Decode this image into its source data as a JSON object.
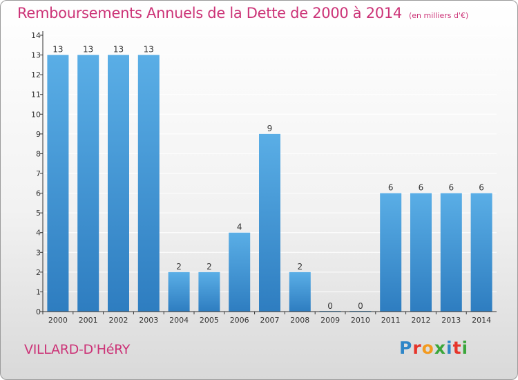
{
  "title": "Remboursements Annuels de la Dette de 2000 à 2014",
  "subtitle": "(en milliers d'€)",
  "commune": "VILLARD-D'HéRY",
  "logo": [
    "P",
    "r",
    "o",
    "x",
    "i",
    "t",
    "i"
  ],
  "colors": {
    "bar_top": "#5aaee6",
    "bar_bottom": "#2e7dc0",
    "axis": "#333333",
    "title": "#cc3377",
    "grid": "#ffffff"
  },
  "chart_data": {
    "type": "bar",
    "title": "Remboursements Annuels de la Dette de 2000 à 2014",
    "subtitle": "(en milliers d'€)",
    "categories": [
      "2000",
      "2001",
      "2002",
      "2003",
      "2004",
      "2005",
      "2006",
      "2007",
      "2008",
      "2009",
      "2010",
      "2011",
      "2012",
      "2013",
      "2014"
    ],
    "values": [
      13,
      13,
      13,
      13,
      2,
      2,
      4,
      9,
      2,
      0,
      0,
      6,
      6,
      6,
      6
    ],
    "ylim": [
      0,
      14
    ],
    "yticks": [
      0,
      1,
      2,
      3,
      4,
      5,
      6,
      7,
      8,
      9,
      10,
      11,
      12,
      13,
      14
    ],
    "xlabel": "",
    "ylabel": "",
    "grid": true,
    "legend": "none"
  }
}
